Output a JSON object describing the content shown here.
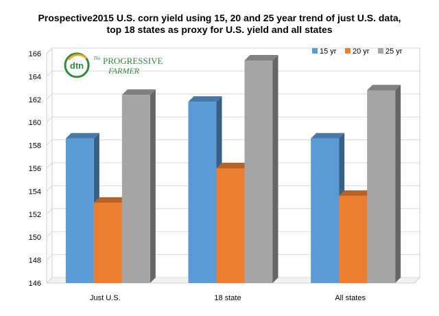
{
  "chart_data": {
    "type": "bar",
    "title_lines": [
      "Prospective2015 U.S. corn yield using 15, 20 and 25 year trend of just U.S. data,",
      "top 18 states as proxy for U.S. yield and all states"
    ],
    "categories": [
      "Just U.S.",
      "18 state",
      "All states"
    ],
    "series": [
      {
        "name": "15 yr",
        "values": [
          158.6,
          161.8,
          158.6
        ],
        "color": "#5b9bd5"
      },
      {
        "name": "20 yr",
        "values": [
          153.0,
          156.0,
          153.6
        ],
        "color": "#ed7d31"
      },
      {
        "name": "25 yr",
        "values": [
          162.4,
          165.4,
          162.8
        ],
        "color": "#a5a5a5"
      }
    ],
    "ylim": [
      146,
      166
    ],
    "yticks": [
      146,
      148,
      150,
      152,
      154,
      156,
      158,
      160,
      162,
      164,
      166
    ],
    "grid": true,
    "three_d": true,
    "legend_position": "top-right"
  },
  "logo": {
    "mark": "dtn",
    "the": "The",
    "brand": "PROGRESSIVE",
    "sub": "FARMER"
  }
}
